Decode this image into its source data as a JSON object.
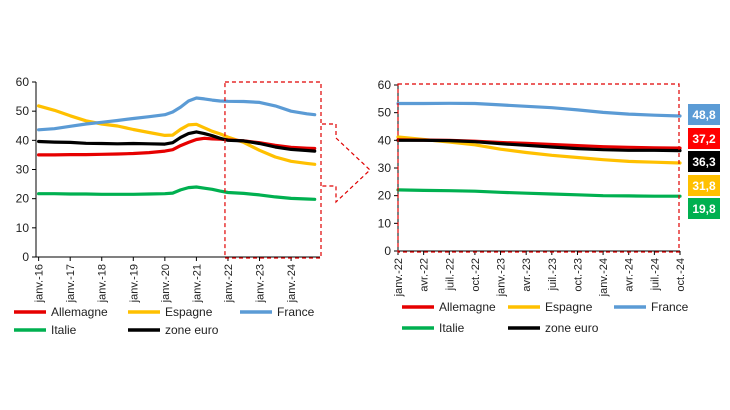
{
  "colors": {
    "Allemagne": "#e60000",
    "Espagne": "#ffc000",
    "France": "#5b9bd5",
    "Italie": "#00b050",
    "zone euro": "#000000",
    "highlight": "#e00000"
  },
  "chart_data": [
    {
      "type": "line",
      "title": "",
      "xlabel": "",
      "ylabel": "",
      "ylim": [
        0,
        60
      ],
      "yticks": [
        "0",
        "10",
        "20",
        "30",
        "40",
        "50",
        "60"
      ],
      "xtick_labels": [
        "janv.-16",
        "janv.-17",
        "janv.-18",
        "janv.-19",
        "janv.-20",
        "janv.-21",
        "janv.-22",
        "janv.-23",
        "janv.-24"
      ],
      "grid": false,
      "legend_position": "bottom",
      "x": [
        "2016-01",
        "2016-07",
        "2017-01",
        "2017-07",
        "2018-01",
        "2018-07",
        "2019-01",
        "2019-07",
        "2020-01",
        "2020-04",
        "2020-07",
        "2020-10",
        "2021-01",
        "2021-04",
        "2021-07",
        "2021-10",
        "2022-01",
        "2022-07",
        "2023-01",
        "2023-07",
        "2024-01",
        "2024-07",
        "2024-10"
      ],
      "series": [
        {
          "name": "Allemagne",
          "values": [
            35.0,
            35.0,
            35.1,
            35.1,
            35.2,
            35.3,
            35.5,
            35.8,
            36.3,
            36.8,
            38.2,
            39.3,
            40.3,
            40.7,
            40.5,
            40.4,
            40.2,
            39.8,
            39.2,
            38.3,
            37.6,
            37.3,
            37.2
          ]
        },
        {
          "name": "Espagne",
          "values": [
            51.8,
            50.3,
            48.4,
            46.7,
            45.6,
            44.9,
            43.7,
            42.7,
            41.7,
            41.8,
            43.8,
            45.3,
            45.5,
            44.3,
            43.1,
            42.2,
            41.1,
            39.3,
            36.6,
            34.3,
            32.8,
            32.1,
            31.8
          ]
        },
        {
          "name": "France",
          "values": [
            43.6,
            44.0,
            44.8,
            45.6,
            46.2,
            46.8,
            47.5,
            48.1,
            48.8,
            49.7,
            51.4,
            53.5,
            54.5,
            54.2,
            53.8,
            53.5,
            53.4,
            53.3,
            53.0,
            51.8,
            50.0,
            49.1,
            48.8
          ]
        },
        {
          "name": "Italie",
          "values": [
            21.7,
            21.7,
            21.6,
            21.6,
            21.5,
            21.5,
            21.5,
            21.6,
            21.7,
            21.9,
            23.0,
            23.8,
            24.0,
            23.6,
            23.2,
            22.6,
            22.1,
            21.8,
            21.3,
            20.6,
            20.1,
            19.9,
            19.8
          ]
        },
        {
          "name": "zone euro",
          "values": [
            39.6,
            39.4,
            39.3,
            39.0,
            38.9,
            38.8,
            38.9,
            38.8,
            38.7,
            39.2,
            41.0,
            42.3,
            42.9,
            42.3,
            41.6,
            40.7,
            40.0,
            39.8,
            38.9,
            37.7,
            36.9,
            36.5,
            36.3
          ]
        }
      ]
    },
    {
      "type": "line",
      "title": "",
      "xlabel": "",
      "ylabel": "",
      "ylim": [
        0,
        60
      ],
      "yticks": [
        "0",
        "10",
        "20",
        "30",
        "40",
        "50",
        "60"
      ],
      "xtick_labels": [
        "janv.-22",
        "avr.-22",
        "juil.-22",
        "oct.-22",
        "janv.-23",
        "avr.-23",
        "juil.-23",
        "oct.-23",
        "janv.-24",
        "avr.-24",
        "juil.-24",
        "oct.-24"
      ],
      "grid": false,
      "legend_position": "bottom",
      "x": [
        "2022-01",
        "2022-04",
        "2022-07",
        "2022-10",
        "2023-01",
        "2023-04",
        "2023-07",
        "2023-10",
        "2024-01",
        "2024-04",
        "2024-07",
        "2024-10"
      ],
      "series": [
        {
          "name": "Allemagne",
          "values": [
            40.2,
            40.1,
            40.0,
            39.7,
            39.2,
            38.9,
            38.5,
            38.1,
            37.7,
            37.5,
            37.3,
            37.2
          ]
        },
        {
          "name": "Espagne",
          "values": [
            41.2,
            40.3,
            39.4,
            38.4,
            36.8,
            35.6,
            34.6,
            33.8,
            33.0,
            32.4,
            32.1,
            31.8
          ]
        },
        {
          "name": "France",
          "values": [
            53.3,
            53.3,
            53.4,
            53.3,
            52.8,
            52.3,
            51.8,
            51.0,
            50.1,
            49.5,
            49.1,
            48.8
          ]
        },
        {
          "name": "Italie",
          "values": [
            22.1,
            21.9,
            21.8,
            21.6,
            21.2,
            20.9,
            20.6,
            20.3,
            20.0,
            19.9,
            19.8,
            19.8
          ]
        },
        {
          "name": "zone euro",
          "values": [
            40.0,
            40.0,
            39.9,
            39.5,
            38.8,
            38.2,
            37.6,
            37.0,
            36.6,
            36.4,
            36.4,
            36.3
          ]
        }
      ],
      "end_labels": [
        {
          "name": "France",
          "text": "48,8",
          "value": 48.8,
          "color": "#5b9bd5"
        },
        {
          "name": "Allemagne",
          "text": "37,2",
          "value": 37.2,
          "color": "#ff0000"
        },
        {
          "name": "zone euro",
          "text": "36,3",
          "value": 36.3,
          "color": "#000000"
        },
        {
          "name": "Espagne",
          "text": "31,8",
          "value": 31.8,
          "color": "#ffc000"
        },
        {
          "name": "Italie",
          "text": "19,8",
          "value": 19.8,
          "color": "#00b050"
        }
      ]
    }
  ],
  "legend": [
    {
      "name": "Allemagne"
    },
    {
      "name": "Espagne"
    },
    {
      "name": "France"
    },
    {
      "name": "Italie"
    },
    {
      "name": "zone euro"
    }
  ]
}
